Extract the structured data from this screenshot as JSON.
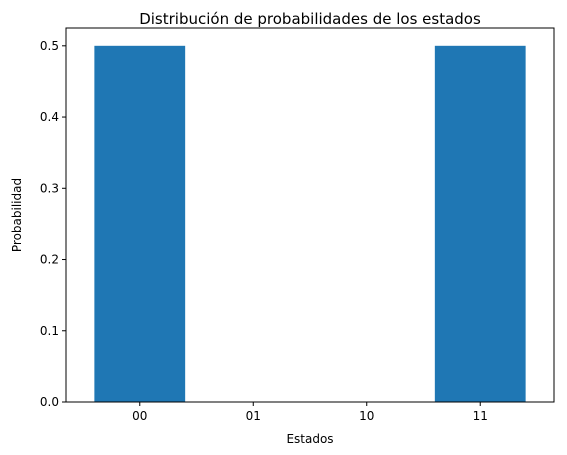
{
  "chart_data": {
    "type": "bar",
    "title": "Distribución de probabilidades de los estados",
    "xlabel": "Estados",
    "ylabel": "Probabilidad",
    "categories": [
      "00",
      "01",
      "10",
      "11"
    ],
    "values": [
      0.5,
      0.0,
      0.0,
      0.5
    ],
    "ylim": [
      0,
      0.525
    ],
    "yticks": [
      "0.0",
      "0.1",
      "0.2",
      "0.3",
      "0.4",
      "0.5"
    ],
    "grid": false,
    "bar_color": "#1f77b4"
  }
}
